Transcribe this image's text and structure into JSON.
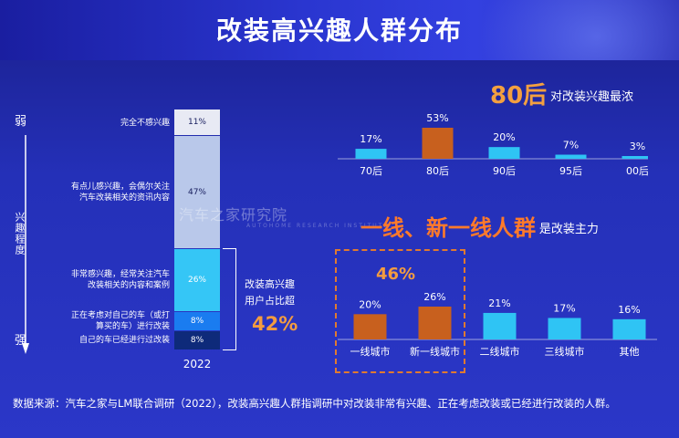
{
  "title": "改装高兴趣人群分布",
  "left": {
    "axis_top": "弱",
    "axis_middle": "兴趣程度",
    "axis_bottom": "强",
    "year": "2022",
    "note_line1": "改装高兴趣",
    "note_line2": "用户占比超",
    "note_pct": "42%"
  },
  "top_right": {
    "headline_emph": "80后",
    "headline_rest": "对改装兴趣最浓"
  },
  "bottom_right": {
    "headline_emph": "一线、新一线人群",
    "headline_rest": "是改装主力",
    "combined_pct": "46%"
  },
  "watermark": {
    "text": "汽车之家研究院",
    "sub": "AUTOHOME RESEARCH INSTITUTE"
  },
  "footer": "数据来源：汽车之家与LM联合调研（2022），改装高兴趣人群指调研中对改装非常有兴趣、正在考虑改装或已经进行改装的人群。",
  "colors": {
    "orange": "#c8601e",
    "cyan": "#2fc4f4",
    "accent": "#f39c40"
  },
  "chart_data": [
    {
      "type": "bar",
      "stacked": true,
      "categories": [
        "完全不感兴趣",
        "有点儿感兴趣，会偶尔关注汽车改装相关的资讯内容",
        "非常感兴趣，经常关注汽车改装相关的内容和案例",
        "正在考虑对自己的车（或打算买的车）进行改装",
        "自己的车已经进行过改装"
      ],
      "category_lines": [
        [
          "完全不感兴趣"
        ],
        [
          "有点儿感兴趣，会偶尔关注",
          "汽车改装相关的资讯内容"
        ],
        [
          "非常感兴趣，经常关注汽车",
          "改装相关的内容和案例"
        ],
        [
          "正在考虑对自己的车（或打",
          "算买的车）进行改装"
        ],
        [
          "自己的车已经进行过改装"
        ]
      ],
      "values": [
        11,
        47,
        26,
        8,
        8
      ],
      "value_labels": [
        "11%",
        "47%",
        "26%",
        "8%",
        "8%"
      ],
      "x": [
        "2022"
      ],
      "colors": [
        "#e8eaf4",
        "#b9c8ea",
        "#35c6f6",
        "#1a7cf0",
        "#0e2a7a"
      ]
    },
    {
      "type": "bar",
      "categories": [
        "70后",
        "80后",
        "90后",
        "95后",
        "00后"
      ],
      "values": [
        17,
        53,
        20,
        7,
        3
      ],
      "value_labels": [
        "17%",
        "53%",
        "20%",
        "7%",
        "3%"
      ],
      "highlight": [
        "80后"
      ]
    },
    {
      "type": "bar",
      "categories": [
        "一线城市",
        "新一线城市",
        "二线城市",
        "三线城市",
        "其他"
      ],
      "values": [
        20,
        26,
        21,
        17,
        16
      ],
      "value_labels": [
        "20%",
        "26%",
        "21%",
        "17%",
        "16%"
      ],
      "highlight": [
        "一线城市",
        "新一线城市"
      ]
    }
  ]
}
